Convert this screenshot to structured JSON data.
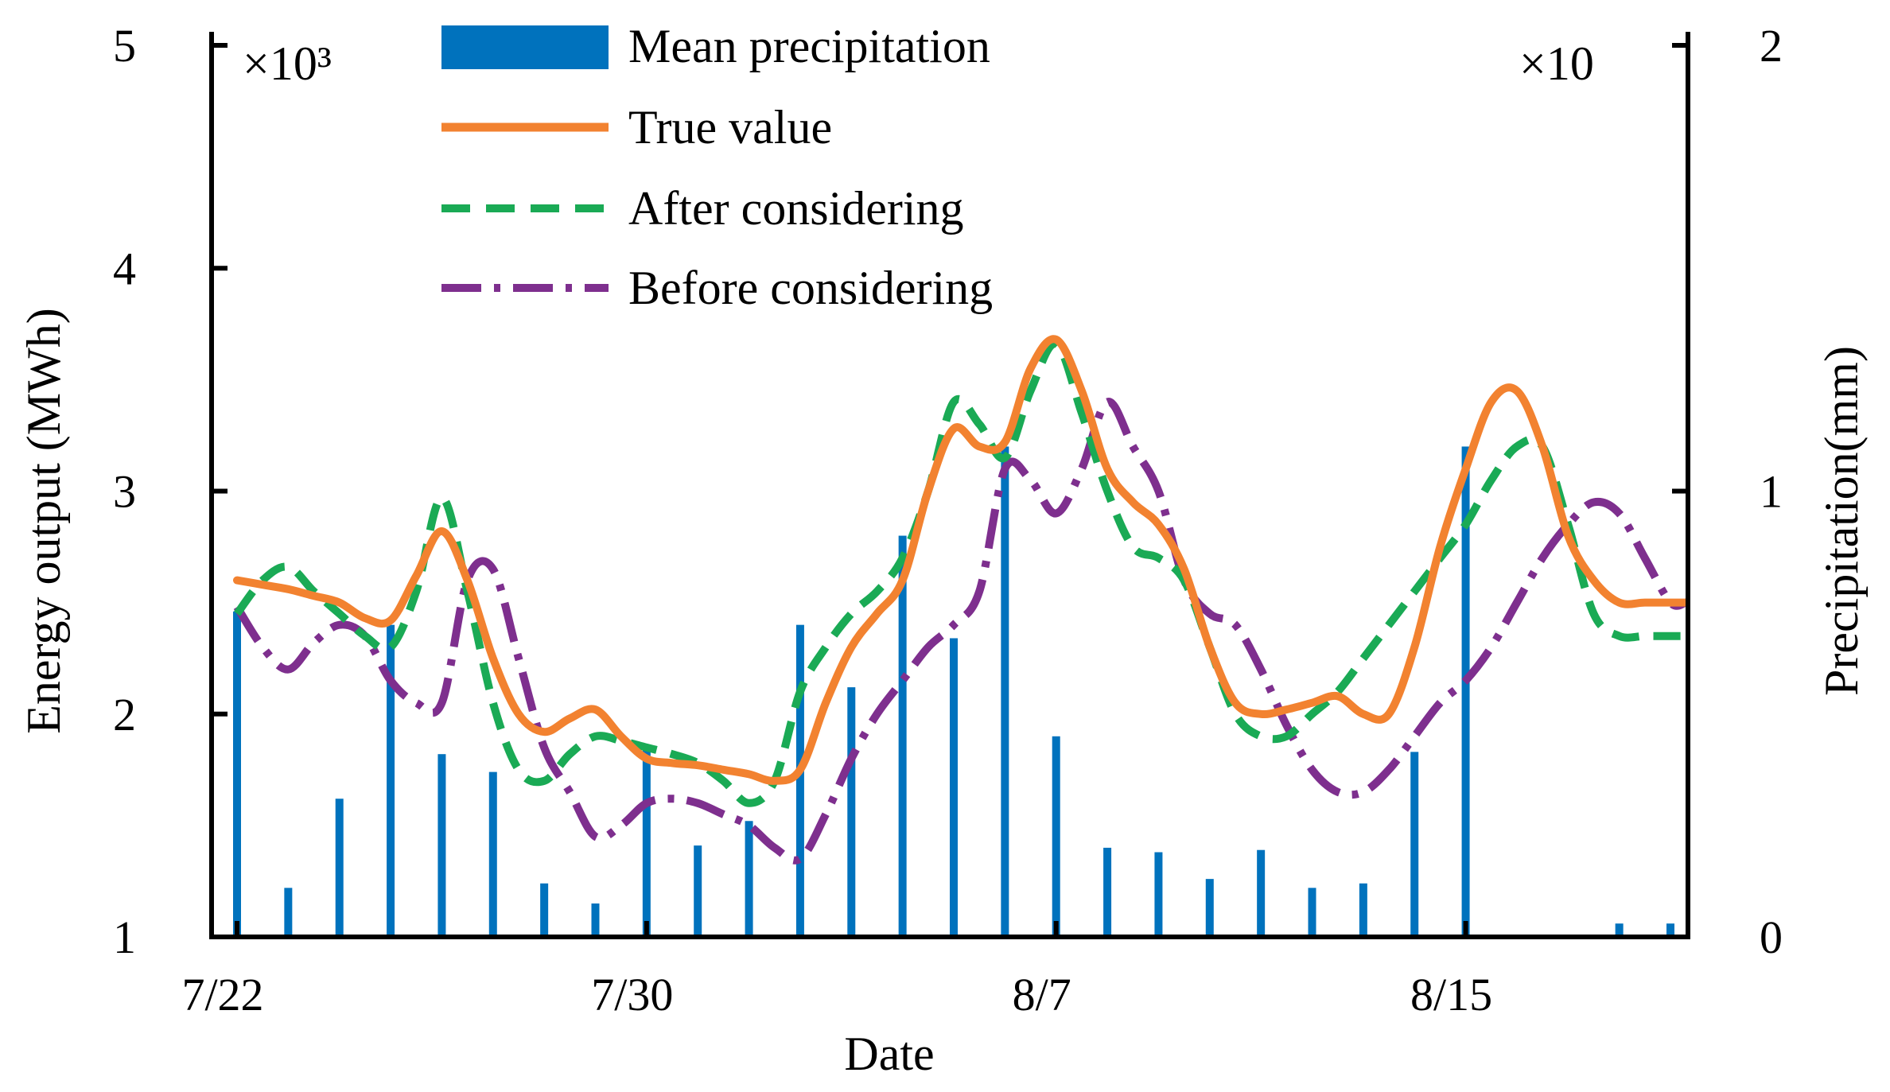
{
  "chart_data": {
    "type": "bar+line",
    "title": "",
    "xlabel": "Date",
    "ylabel_left": "Energy output (MWh)",
    "ylabel_right": "Precipitation(mm)",
    "left_multiplier": "×10³",
    "right_multiplier": "×10",
    "ylim_left": [
      1,
      5
    ],
    "ylim_right": [
      0,
      2
    ],
    "yticks_left": [
      "1",
      "2",
      "3",
      "4",
      "5"
    ],
    "yticks_right": [
      "0",
      "1",
      "2"
    ],
    "xlim": [
      0,
      28.3
    ],
    "x_tick_positions": [
      0,
      8,
      16,
      24
    ],
    "x_tick_labels": [
      "7/22",
      "7/30",
      "8/7",
      "8/15"
    ],
    "legend": {
      "placement": "top-center",
      "entries": [
        "Mean precipitation",
        "True value",
        "After considering",
        "Before considering"
      ]
    },
    "bars": {
      "name": "Mean precipitation",
      "color": "#0072BD",
      "axis": "right",
      "x": [
        0,
        1,
        2,
        3,
        4,
        5,
        6,
        7,
        8,
        9,
        10,
        11,
        12,
        13,
        14,
        15,
        16,
        17,
        18,
        19,
        20,
        21,
        22,
        23,
        24,
        25,
        26,
        27,
        28
      ],
      "values": [
        0.73,
        0.11,
        0.31,
        0.7,
        0.41,
        0.37,
        0.12,
        0.075,
        0.43,
        0.205,
        0.26,
        0.7,
        0.56,
        0.9,
        0.67,
        1.1,
        0.45,
        0.2,
        0.19,
        0.13,
        0.195,
        0.11,
        0.12,
        0.415,
        1.1,
        0,
        0.005,
        0.03,
        0.03
      ]
    },
    "series": [
      {
        "name": "True value",
        "color": "#F28230",
        "style": "solid",
        "x": [
          0,
          0.5,
          1,
          1.5,
          2,
          2.5,
          3,
          3.5,
          4,
          4.5,
          5,
          5.5,
          6,
          6.5,
          7,
          7.5,
          8,
          8.5,
          9,
          9.5,
          10,
          10.5,
          11,
          11.5,
          12,
          12.5,
          13,
          13.5,
          14,
          14.5,
          15,
          15.5,
          16,
          16.5,
          17,
          17.5,
          18,
          18.5,
          19,
          19.5,
          20,
          20.5,
          21,
          21.5,
          22,
          22.5,
          23,
          23.5,
          24,
          24.5,
          25,
          25.5,
          26,
          26.5,
          27,
          27.5,
          28,
          28.3
        ],
        "values": [
          2.6,
          2.58,
          2.56,
          2.53,
          2.5,
          2.43,
          2.42,
          2.62,
          2.82,
          2.6,
          2.25,
          2.0,
          1.92,
          1.98,
          2.02,
          1.9,
          1.8,
          1.78,
          1.77,
          1.75,
          1.73,
          1.7,
          1.75,
          2.05,
          2.3,
          2.45,
          2.6,
          3.0,
          3.28,
          3.2,
          3.22,
          3.55,
          3.68,
          3.45,
          3.1,
          2.95,
          2.85,
          2.65,
          2.3,
          2.05,
          2.0,
          2.02,
          2.05,
          2.08,
          2.0,
          2.0,
          2.3,
          2.75,
          3.1,
          3.4,
          3.45,
          3.2,
          2.8,
          2.6,
          2.5,
          2.5,
          2.5,
          2.5
        ]
      },
      {
        "name": "After considering",
        "color": "#1AAA55",
        "style": "dashed",
        "x": [
          0,
          0.5,
          1,
          1.5,
          2,
          2.5,
          3,
          3.5,
          4,
          4.5,
          5,
          5.5,
          6,
          6.5,
          7,
          7.5,
          8,
          8.5,
          9,
          9.5,
          10,
          10.5,
          11,
          11.5,
          12,
          12.5,
          13,
          13.5,
          14,
          14.5,
          15,
          15.5,
          16,
          16.5,
          17,
          17.5,
          18,
          18.5,
          19,
          19.5,
          20,
          20.5,
          21,
          21.5,
          22,
          22.5,
          23,
          23.5,
          24,
          24.5,
          25,
          25.5,
          26,
          26.5,
          27,
          27.5,
          28,
          28.3
        ],
        "values": [
          2.45,
          2.6,
          2.66,
          2.55,
          2.45,
          2.35,
          2.3,
          2.55,
          2.97,
          2.55,
          2.05,
          1.75,
          1.7,
          1.82,
          1.9,
          1.88,
          1.85,
          1.82,
          1.78,
          1.7,
          1.6,
          1.7,
          2.1,
          2.3,
          2.45,
          2.55,
          2.7,
          3.0,
          3.4,
          3.3,
          3.15,
          3.45,
          3.66,
          3.35,
          3.0,
          2.75,
          2.7,
          2.6,
          2.3,
          2.0,
          1.9,
          1.9,
          2.0,
          2.1,
          2.25,
          2.4,
          2.55,
          2.7,
          2.85,
          3.05,
          3.2,
          3.2,
          2.85,
          2.45,
          2.35,
          2.35,
          2.35,
          2.35
        ]
      },
      {
        "name": "Before considering",
        "color": "#7E2F8E",
        "style": "dashdot",
        "x": [
          0,
          0.5,
          1,
          1.5,
          2,
          2.5,
          3,
          3.5,
          4,
          4.5,
          5,
          5.5,
          6,
          6.5,
          7,
          7.5,
          8,
          8.5,
          9,
          9.5,
          10,
          10.5,
          11,
          11.5,
          12,
          12.5,
          13,
          13.5,
          14,
          14.5,
          15,
          15.5,
          16,
          16.5,
          17,
          17.5,
          18,
          18.5,
          19,
          19.5,
          20,
          20.5,
          21,
          21.5,
          22,
          22.5,
          23,
          23.5,
          24,
          24.5,
          25,
          25.5,
          26,
          26.5,
          27,
          27.5,
          28,
          28.3
        ],
        "values": [
          2.48,
          2.3,
          2.2,
          2.32,
          2.4,
          2.35,
          2.15,
          2.05,
          2.05,
          2.6,
          2.65,
          2.25,
          1.85,
          1.65,
          1.45,
          1.5,
          1.6,
          1.62,
          1.6,
          1.55,
          1.5,
          1.4,
          1.35,
          1.55,
          1.8,
          2.0,
          2.15,
          2.3,
          2.4,
          2.55,
          3.1,
          3.05,
          2.9,
          3.1,
          3.4,
          3.2,
          3.0,
          2.6,
          2.45,
          2.4,
          2.2,
          1.95,
          1.75,
          1.65,
          1.65,
          1.75,
          1.9,
          2.05,
          2.15,
          2.3,
          2.5,
          2.7,
          2.85,
          2.95,
          2.9,
          2.7,
          2.5,
          2.5
        ]
      }
    ]
  }
}
